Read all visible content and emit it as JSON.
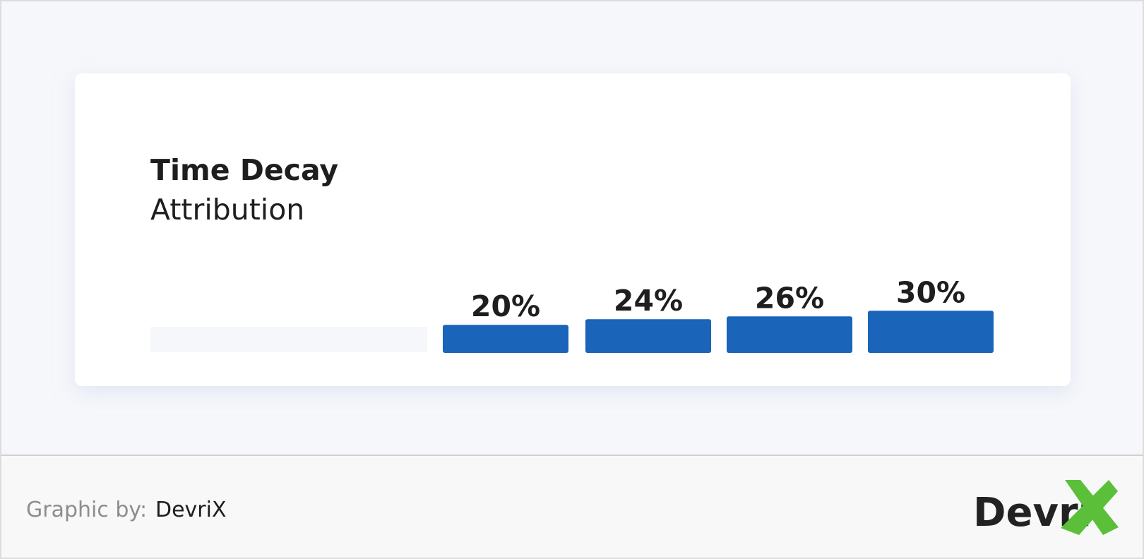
{
  "chart_data": {
    "type": "bar",
    "title": "Time Decay",
    "subtitle": "Attribution",
    "values": [
      20,
      24,
      26,
      30
    ],
    "value_labels": [
      "20%",
      "24%",
      "26%",
      "30%"
    ],
    "color": "#1a64b9"
  },
  "footer": {
    "label": "Graphic by:",
    "author": "DevriX",
    "logo": "Devri"
  }
}
